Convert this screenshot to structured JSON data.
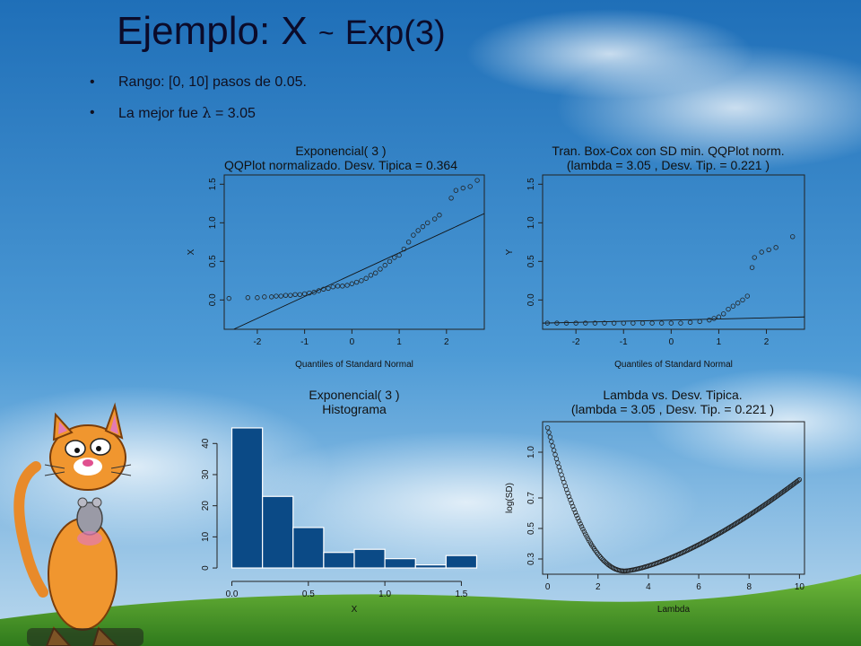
{
  "slide": {
    "title_main": "Ejemplo: X",
    "title_tilde": "~",
    "title_tail": "Exp(3)",
    "bullets": [
      {
        "text_prefix": "Rango: [0, 10] pasos de 0.05."
      },
      {
        "text_prefix": "La mejor fue ",
        "symbol": "λ",
        "text_suffix": " = 3.05"
      }
    ],
    "colors": {
      "sky_top": "#1f6fb8",
      "sky_bottom": "#bcd9ee",
      "grass": "#4c9a2a",
      "bar_fill": "#0b4a86"
    }
  },
  "chart_data": [
    {
      "type": "scatter",
      "title_lines": [
        "Exponencial( 3 )",
        "QQPlot normalizado. Desv. Tipica =  0.364"
      ],
      "xlabel": "Quantiles of Standard Normal",
      "ylabel": "X",
      "xlim": [
        -2.7,
        2.8
      ],
      "ylim": [
        -0.38,
        1.62
      ],
      "xticks": [
        "-2",
        "-1",
        "0",
        "1",
        "2"
      ],
      "yticks": [
        "0.0",
        "0.5",
        "1.0",
        "1.5"
      ],
      "points": [
        [
          -2.6,
          0.02
        ],
        [
          -2.2,
          0.03
        ],
        [
          -2.0,
          0.03
        ],
        [
          -1.85,
          0.04
        ],
        [
          -1.7,
          0.04
        ],
        [
          -1.6,
          0.05
        ],
        [
          -1.5,
          0.05
        ],
        [
          -1.4,
          0.06
        ],
        [
          -1.3,
          0.06
        ],
        [
          -1.2,
          0.07
        ],
        [
          -1.1,
          0.07
        ],
        [
          -1.0,
          0.08
        ],
        [
          -0.9,
          0.09
        ],
        [
          -0.8,
          0.1
        ],
        [
          -0.7,
          0.12
        ],
        [
          -0.6,
          0.14
        ],
        [
          -0.5,
          0.15
        ],
        [
          -0.4,
          0.17
        ],
        [
          -0.3,
          0.18
        ],
        [
          -0.2,
          0.18
        ],
        [
          -0.1,
          0.19
        ],
        [
          0.0,
          0.21
        ],
        [
          0.1,
          0.23
        ],
        [
          0.2,
          0.25
        ],
        [
          0.3,
          0.28
        ],
        [
          0.4,
          0.32
        ],
        [
          0.5,
          0.35
        ],
        [
          0.6,
          0.4
        ],
        [
          0.7,
          0.45
        ],
        [
          0.8,
          0.5
        ],
        [
          0.9,
          0.55
        ],
        [
          1.0,
          0.58
        ],
        [
          1.1,
          0.66
        ],
        [
          1.2,
          0.75
        ],
        [
          1.3,
          0.84
        ],
        [
          1.4,
          0.9
        ],
        [
          1.5,
          0.95
        ],
        [
          1.6,
          1.0
        ],
        [
          1.75,
          1.05
        ],
        [
          1.85,
          1.1
        ],
        [
          2.1,
          1.32
        ],
        [
          2.2,
          1.42
        ],
        [
          2.35,
          1.45
        ],
        [
          2.5,
          1.47
        ],
        [
          2.65,
          1.55
        ]
      ],
      "line": [
        [
          -2.5,
          -0.38
        ],
        [
          2.8,
          1.12
        ]
      ]
    },
    {
      "type": "scatter",
      "title_lines": [
        "Tran. Box-Cox con SD min. QQPlot norm.",
        "(lambda =  3.05 , Desv. Tip. =  0.221 )"
      ],
      "xlabel": "Quantiles of Standard Normal",
      "ylabel": "Y",
      "xlim": [
        -2.7,
        2.8
      ],
      "ylim": [
        -0.38,
        1.62
      ],
      "xticks": [
        "-2",
        "-1",
        "0",
        "1",
        "2"
      ],
      "yticks": [
        "0.0",
        "0.5",
        "1.0",
        "1.5"
      ],
      "points": [
        [
          -2.6,
          -0.3
        ],
        [
          -2.4,
          -0.3
        ],
        [
          -2.2,
          -0.3
        ],
        [
          -2.0,
          -0.3
        ],
        [
          -1.8,
          -0.3
        ],
        [
          -1.6,
          -0.3
        ],
        [
          -1.4,
          -0.3
        ],
        [
          -1.2,
          -0.3
        ],
        [
          -1.0,
          -0.3
        ],
        [
          -0.8,
          -0.3
        ],
        [
          -0.6,
          -0.3
        ],
        [
          -0.4,
          -0.3
        ],
        [
          -0.2,
          -0.3
        ],
        [
          0.0,
          -0.3
        ],
        [
          0.2,
          -0.3
        ],
        [
          0.4,
          -0.29
        ],
        [
          0.6,
          -0.28
        ],
        [
          0.8,
          -0.26
        ],
        [
          0.9,
          -0.24
        ],
        [
          1.0,
          -0.22
        ],
        [
          1.1,
          -0.18
        ],
        [
          1.2,
          -0.12
        ],
        [
          1.3,
          -0.08
        ],
        [
          1.4,
          -0.04
        ],
        [
          1.5,
          0.0
        ],
        [
          1.6,
          0.05
        ],
        [
          1.7,
          0.42
        ],
        [
          1.75,
          0.55
        ],
        [
          1.9,
          0.62
        ],
        [
          2.05,
          0.65
        ],
        [
          2.2,
          0.68
        ],
        [
          2.55,
          0.82
        ]
      ],
      "line": [
        [
          -2.7,
          -0.3
        ],
        [
          2.8,
          -0.22
        ]
      ]
    },
    {
      "type": "bar",
      "title_lines": [
        "Exponencial( 3 )",
        "Histograma"
      ],
      "xlabel": "X",
      "ylabel": "",
      "xlim": [
        -0.05,
        1.65
      ],
      "ylim": [
        -2,
        47
      ],
      "xticks": [
        "0.0",
        "0.5",
        "1.0",
        "1.5"
      ],
      "yticks": [
        "0",
        "10",
        "20",
        "30",
        "40"
      ],
      "bins": [
        [
          0.0,
          0.2,
          45
        ],
        [
          0.2,
          0.4,
          23
        ],
        [
          0.4,
          0.6,
          13
        ],
        [
          0.6,
          0.8,
          5
        ],
        [
          0.8,
          1.0,
          6
        ],
        [
          1.0,
          1.2,
          3
        ],
        [
          1.2,
          1.4,
          1
        ],
        [
          1.4,
          1.6,
          4
        ]
      ]
    },
    {
      "type": "scatter",
      "title_lines": [
        "Lambda vs. Desv. Tipica.",
        "(lambda =  3.05 , Desv. Tip. =  0.221 )"
      ],
      "xlabel": "Lambda",
      "ylabel": "log(SD)",
      "xlim": [
        -0.2,
        10.2
      ],
      "ylim": [
        0.2,
        1.2
      ],
      "xticks": [
        "0",
        "2",
        "4",
        "6",
        "8",
        "10"
      ],
      "yticks": [
        "0.3",
        "0.5",
        "0.7",
        "1.0"
      ],
      "min_lambda": 3.05,
      "min_value": 0.221,
      "start_value": 1.16,
      "end_value": 0.82,
      "lambda_step": 0.05
    }
  ]
}
